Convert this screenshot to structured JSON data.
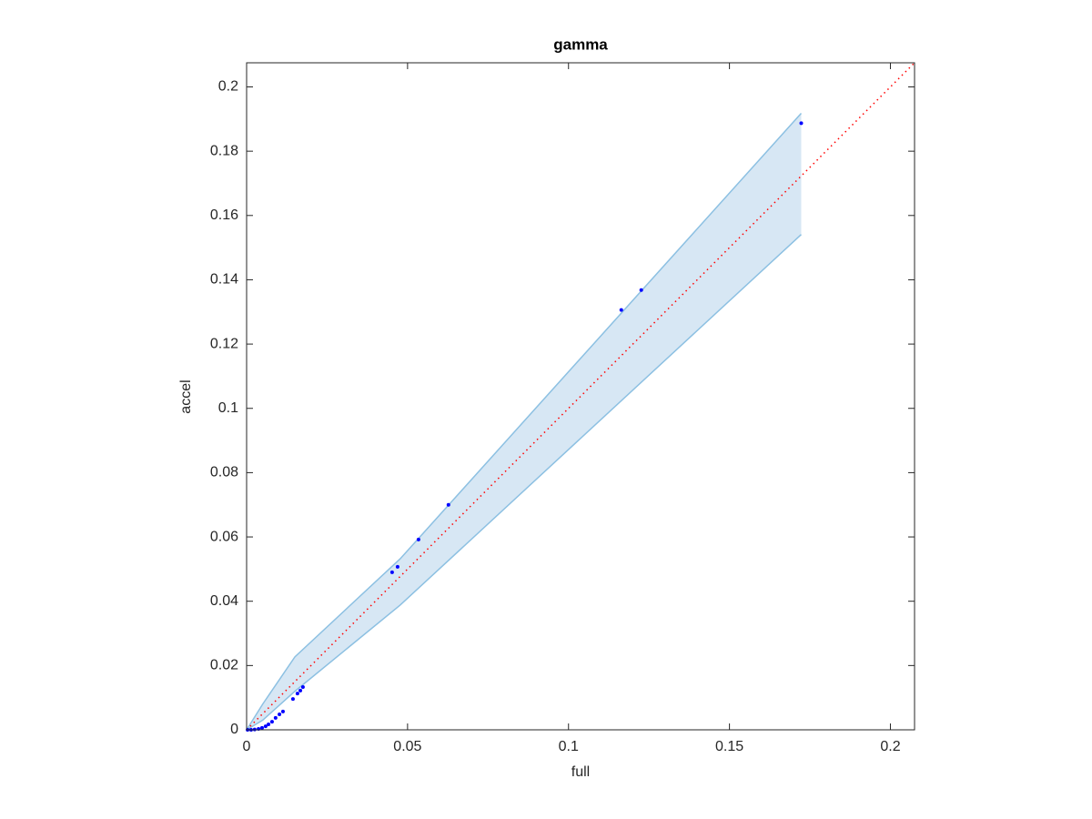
{
  "chart_data": {
    "type": "scatter",
    "title": "gamma",
    "x_label": "full",
    "y_label": "accel",
    "xlim": [
      0,
      0.2075
    ],
    "ylim": [
      0,
      0.2075
    ],
    "xticks": [
      0,
      0.05,
      0.1,
      0.15,
      0.2
    ],
    "yticks": [
      0,
      0.02,
      0.04,
      0.06,
      0.08,
      0.1,
      0.12,
      0.14,
      0.16,
      0.18,
      0.2
    ],
    "grid": false,
    "band": {
      "x": [
        0,
        0.005,
        0.015,
        0.0477,
        0.1723
      ],
      "upper": [
        0,
        0.008,
        0.0227,
        0.0532,
        0.1918
      ],
      "lower": [
        0,
        0.003,
        0.012,
        0.0388,
        0.1541
      ],
      "color": "#d7e7f4",
      "edge_color": "#8cc0e2"
    },
    "reference_line": {
      "x": [
        0,
        0.2075
      ],
      "y": [
        0,
        0.2075
      ],
      "color": "#ff0000",
      "dotted": true
    },
    "points": {
      "color": "#0000ff",
      "x": [
        0.1723,
        0.1164,
        0.1226,
        0.0627,
        0.0534,
        0.0469,
        0.0452,
        0.0175,
        0.0167,
        0.0158,
        0.0144,
        0.0113,
        0.0102,
        0.009,
        0.0079,
        0.0068,
        0.0059,
        0.0048,
        0.0037,
        0.0025,
        0.0014,
        0.0003
      ],
      "y": [
        0.1887,
        0.1306,
        0.1368,
        0.07,
        0.0592,
        0.0507,
        0.049,
        0.0133,
        0.0122,
        0.0113,
        0.0096,
        0.0057,
        0.0048,
        0.0037,
        0.0025,
        0.0017,
        0.0011,
        0.0006,
        0.0003,
        0.0001,
        0,
        0
      ]
    }
  }
}
